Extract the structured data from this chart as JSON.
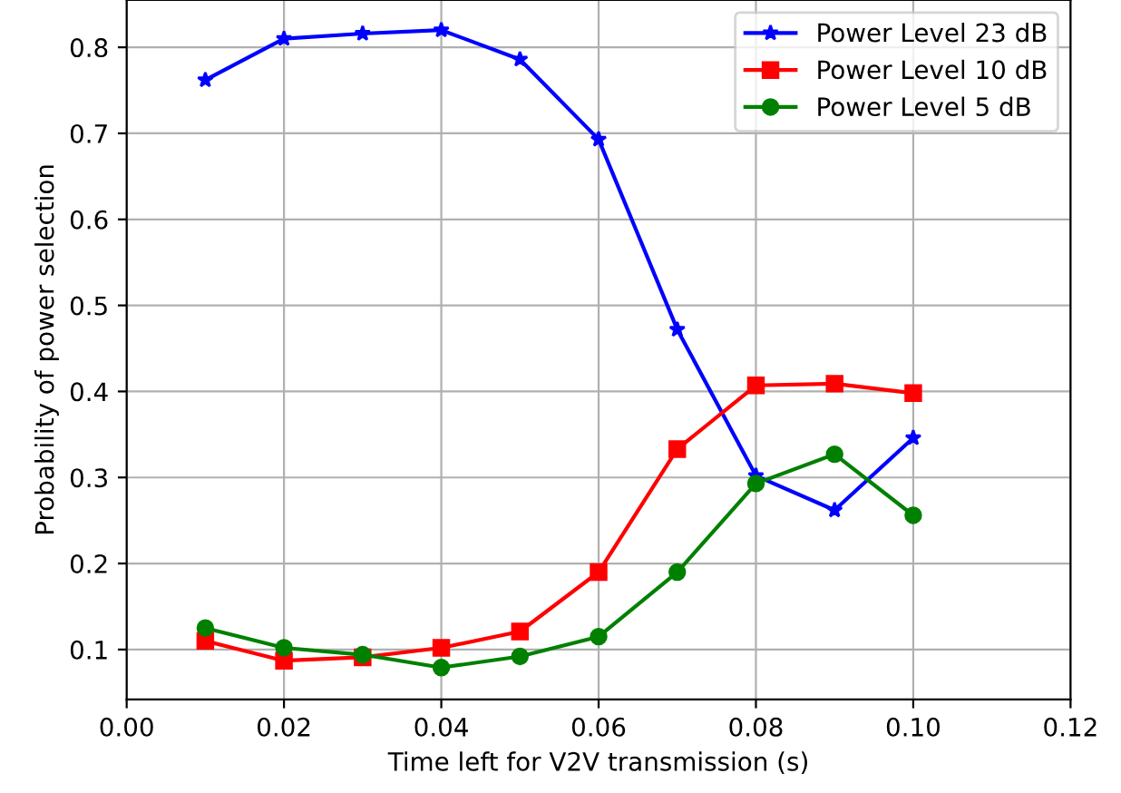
{
  "chart_data": {
    "type": "line",
    "xlabel": "Time left for V2V transmission (s)",
    "ylabel": "Probability of power selection",
    "x": [
      0.01,
      0.02,
      0.03,
      0.04,
      0.05,
      0.06,
      0.07,
      0.08,
      0.09,
      0.1
    ],
    "series": [
      {
        "name": "Power Level 23 dB",
        "color": "#0000ff",
        "marker": "star",
        "values": [
          0.762,
          0.81,
          0.816,
          0.82,
          0.786,
          0.693,
          0.472,
          0.302,
          0.262,
          0.346
        ]
      },
      {
        "name": "Power Level 10 dB",
        "color": "#ff0000",
        "marker": "square",
        "values": [
          0.11,
          0.087,
          0.091,
          0.102,
          0.121,
          0.19,
          0.333,
          0.407,
          0.409,
          0.398
        ]
      },
      {
        "name": "Power Level 5 dB",
        "color": "#008000",
        "marker": "circle",
        "values": [
          0.125,
          0.102,
          0.094,
          0.079,
          0.092,
          0.115,
          0.19,
          0.293,
          0.327,
          0.256
        ]
      }
    ],
    "xlim": [
      0.0,
      0.12
    ],
    "xticks": [
      {
        "value": 0.0,
        "label": "0.00"
      },
      {
        "value": 0.02,
        "label": "0.02"
      },
      {
        "value": 0.04,
        "label": "0.04"
      },
      {
        "value": 0.06,
        "label": "0.06"
      },
      {
        "value": 0.08,
        "label": "0.08"
      },
      {
        "value": 0.1,
        "label": "0.10"
      },
      {
        "value": 0.12,
        "label": "0.12"
      }
    ],
    "ylim": [
      0.042,
      0.855
    ],
    "yticks": [
      0.1,
      0.2,
      0.3,
      0.4,
      0.5,
      0.6,
      0.7,
      0.8
    ],
    "grid": true,
    "legend": "top right",
    "line_style": "solid"
  }
}
